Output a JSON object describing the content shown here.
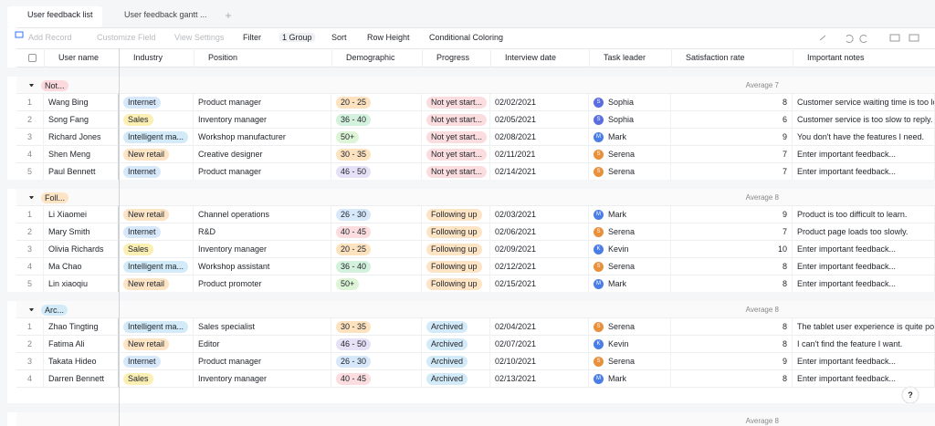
{
  "tabs": [
    "User feedback list",
    "User feedback gantt ..."
  ],
  "toolbar": [
    "Add Record",
    "Customize Field",
    "View Settings",
    "Filter",
    "1 Group",
    "Sort",
    "Row Height",
    "Conditional Coloring"
  ],
  "columns": [
    "User name",
    "Industry",
    "Position",
    "Demographic",
    "Progress",
    "Interview date",
    "Task leader",
    "Satisfaction rate",
    "Important notes"
  ],
  "groups": [
    {
      "label": "Not...",
      "average": "Average 7",
      "rows": [
        {
          "no": 1,
          "name": "Wang Bing",
          "industry": "Internet",
          "position": "Product manager",
          "demographic": "20 - 25",
          "progress": "Not yet start...",
          "date": "02/02/2021",
          "avatar": "S",
          "leader": "Sophia",
          "rate": 8,
          "notes": "Customer service waiting time is too lo"
        },
        {
          "no": 2,
          "name": "Song Fang",
          "industry": "Sales",
          "position": "Inventory manager",
          "demographic": "36 - 40",
          "progress": "Not yet start...",
          "date": "02/05/2021",
          "avatar": "S",
          "leader": "Sophia",
          "rate": 6,
          "notes": "Customer service is too slow to reply."
        },
        {
          "no": 3,
          "name": "Richard Jones",
          "industry": "Intelligent ma...",
          "position": "Workshop manufacturer",
          "demographic": "50+",
          "progress": "Not yet start...",
          "date": "02/08/2021",
          "avatar": "M",
          "leader": "Mark",
          "rate": 9,
          "notes": "You don't have the features I need."
        },
        {
          "no": 4,
          "name": "Shen Meng",
          "industry": "New retail",
          "position": "Creative designer",
          "demographic": "30 - 35",
          "progress": "Not yet start...",
          "date": "02/11/2021",
          "avatar": "S",
          "leader": "Serena",
          "rate": 7,
          "notes": "Enter important feedback..."
        },
        {
          "no": 5,
          "name": "Paul Bennett",
          "industry": "Internet",
          "position": "Product manager",
          "demographic": "46 - 50",
          "progress": "Not yet start...",
          "date": "02/14/2021",
          "avatar": "S",
          "leader": "Serena",
          "rate": 7,
          "notes": "Enter important feedback..."
        }
      ]
    },
    {
      "label": "Foll...",
      "average": "Average 8",
      "rows": [
        {
          "no": 1,
          "name": "Li Xiaomei",
          "industry": "New retail",
          "position": "Channel operations",
          "demographic": "26 - 30",
          "progress": "Following up",
          "date": "02/03/2021",
          "avatar": "M",
          "leader": "Mark",
          "rate": 9,
          "notes": "Product is too difficult to learn."
        },
        {
          "no": 2,
          "name": "Mary Smith",
          "industry": "Internet",
          "position": "R&D",
          "demographic": "40 - 45",
          "progress": "Following up",
          "date": "02/06/2021",
          "avatar": "S",
          "leader": "Serena",
          "rate": 7,
          "notes": "Product page loads too slowly."
        },
        {
          "no": 3,
          "name": "Olivia Richards",
          "industry": "Sales",
          "position": "Inventory manager",
          "demographic": "20 - 25",
          "progress": "Following up",
          "date": "02/09/2021",
          "avatar": "K",
          "leader": "Kevin",
          "rate": 10,
          "notes": "Enter important feedback..."
        },
        {
          "no": 4,
          "name": "Ma Chao",
          "industry": "Intelligent ma...",
          "position": "Workshop assistant",
          "demographic": "36 - 40",
          "progress": "Following up",
          "date": "02/12/2021",
          "avatar": "S",
          "leader": "Serena",
          "rate": 8,
          "notes": "Enter important feedback..."
        },
        {
          "no": 5,
          "name": "Lin xiaoqiu",
          "industry": "New retail",
          "position": "Product promoter",
          "demographic": "50+",
          "progress": "Following up",
          "date": "02/15/2021",
          "avatar": "M",
          "leader": "Mark",
          "rate": 8,
          "notes": "Enter important feedback..."
        }
      ]
    },
    {
      "label": "Arc...",
      "average": "Average 8",
      "rows": [
        {
          "no": 1,
          "name": "Zhao Tingting",
          "industry": "Intelligent ma...",
          "position": "Sales specialist",
          "demographic": "30 - 35",
          "progress": "Archived",
          "date": "02/04/2021",
          "avatar": "S",
          "leader": "Serena",
          "rate": 8,
          "notes": "The tablet user experience is quite po"
        },
        {
          "no": 2,
          "name": "Fatima Ali",
          "industry": "New retail",
          "position": "Editor",
          "demographic": "46 - 50",
          "progress": "Archived",
          "date": "02/07/2021",
          "avatar": "K",
          "leader": "Kevin",
          "rate": 8,
          "notes": "I can't find the feature I want."
        },
        {
          "no": 3,
          "name": "Takata Hideo",
          "industry": "Internet",
          "position": "Product manager",
          "demographic": "26 - 30",
          "progress": "Archived",
          "date": "02/10/2021",
          "avatar": "S",
          "leader": "Serena",
          "rate": 9,
          "notes": "Enter important feedback..."
        },
        {
          "no": 4,
          "name": "Darren Bennett",
          "industry": "Sales",
          "position": "Inventory manager",
          "demographic": "40 - 45",
          "progress": "Archived",
          "date": "02/13/2021",
          "avatar": "M",
          "leader": "Mark",
          "rate": 8,
          "notes": "Enter important feedback..."
        }
      ]
    }
  ],
  "footer_average": "Average 8",
  "help": "?",
  "group_colors": [
    "#fbd9dc",
    "#fde4c4",
    "#d3ebf8"
  ],
  "chip_colors": {
    "Internet": "#d7e8fb",
    "Sales": "#fcefb4",
    "Intelligent ma...": "#d3ebf8",
    "New retail": "#fde4c4",
    "20 - 25": "#fde2c0",
    "36 - 40": "#d3f1dc",
    "50+": "#ddf5d6",
    "30 - 35": "#fde2c0",
    "46 - 50": "#e6e1f7",
    "26 - 30": "#d7e8fb",
    "40 - 45": "#fbdde0",
    "Not yet start...": "#fbdde0",
    "Following up": "#fde4c4",
    "Archived": "#d3ebf8"
  },
  "avatar_colors": {
    "Sophia": "#5b6ee1",
    "Mark": "#4a7ee6",
    "Serena": "#e8903a",
    "Kevin": "#4a7ee6"
  }
}
